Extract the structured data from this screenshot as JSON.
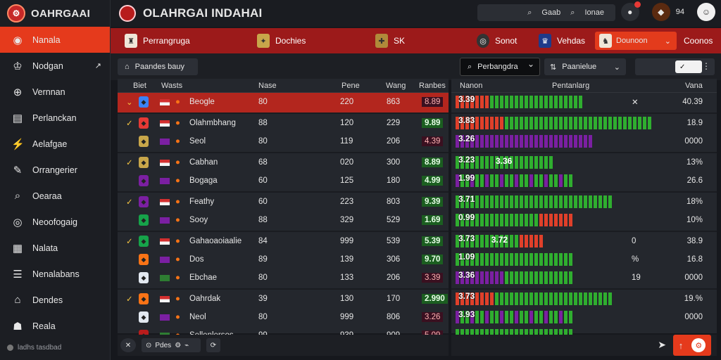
{
  "app": {
    "brand": "OAHRGAAI",
    "title": "OLAHRGAI INDAHAI"
  },
  "topbar": {
    "search_label": "Gaab",
    "search_btn": "Ionae",
    "icon_count": "94"
  },
  "sidebar": {
    "items": [
      {
        "label": "Nanala",
        "icon": "flame-icon",
        "active": true
      },
      {
        "label": "Nodgan",
        "icon": "trophy-icon",
        "arrow": "↗"
      },
      {
        "label": "Vernnan",
        "icon": "bracket-icon"
      },
      {
        "label": "Perlanckan",
        "icon": "chart-icon"
      },
      {
        "label": "Aelafgae",
        "icon": "lightning-icon"
      },
      {
        "label": "Orrangerier",
        "icon": "wrench-icon"
      },
      {
        "label": "Oearaa",
        "icon": "magnifier-icon"
      },
      {
        "label": "Neoofogaig",
        "icon": "globe-icon"
      },
      {
        "label": "Nalata",
        "icon": "grid-icon"
      },
      {
        "label": "Nenalabans",
        "icon": "list-icon"
      },
      {
        "label": "Dendes",
        "icon": "home-icon"
      },
      {
        "label": "Reala",
        "icon": "user-icon"
      }
    ],
    "status": "ladhs tasdbad"
  },
  "categories": [
    {
      "label": "Perrangruga"
    },
    {
      "label": "Dochies"
    },
    {
      "label": "SK"
    },
    {
      "label": "Sonot"
    },
    {
      "label": "Vehdas"
    },
    {
      "label": "Dounoon",
      "selected": true
    },
    {
      "label": "Coonos"
    }
  ],
  "toolbar": {
    "filter_label": "Paandes bauy",
    "search_value": "Perbangdra",
    "sort_label": "Paanielue",
    "toggle_label": "✓"
  },
  "table": {
    "headers": {
      "bet": "Biet",
      "match": "Wasts",
      "nase": "Nase",
      "pane": "Pene",
      "wang": "Wang",
      "results": "Ranbes"
    },
    "right_headers": {
      "nanon": "Nanon",
      "partang": "Pentanlarg",
      "vana": "Vana"
    },
    "games": [
      {
        "highlight": true,
        "rows": [
          {
            "team": "Beogle",
            "nase": "80",
            "pane": "220",
            "wang": "863",
            "odds": "8.89",
            "odds_type": "red",
            "bar_value": "3.39",
            "bar_pct": 0.57,
            "bar_color": "red-green",
            "mark": "✕",
            "vana": "40.39"
          }
        ]
      },
      {
        "rows": [
          {
            "team": "Olahmbhang",
            "nase": "88",
            "pane": "120",
            "wang": "229",
            "odds": "9.89",
            "odds_type": "green",
            "bar_value": "3.83",
            "bar_pct": 0.87,
            "bar_color": "red-green",
            "vana": "18.9"
          },
          {
            "team": "Seol",
            "nase": "80",
            "pane": "119",
            "wang": "206",
            "odds": "4.39",
            "odds_type": "red",
            "bar_value": "3.26",
            "bar_pct": 0.6,
            "bar_color": "purple",
            "vana": "0000"
          }
        ]
      },
      {
        "rows": [
          {
            "team": "Cabhan",
            "nase": "68",
            "pane": "020",
            "wang": "300",
            "odds": "8.89",
            "odds_type": "green",
            "bar_value": "3.23",
            "bar_pct": 0.43,
            "bar_color": "green",
            "mid_label": "3.36",
            "vana": "13%"
          },
          {
            "team": "Bogaga",
            "nase": "60",
            "pane": "125",
            "wang": "180",
            "odds": "4.99",
            "odds_type": "green",
            "bar_value": "1.99",
            "bar_pct": 0.52,
            "bar_color": "green-purple",
            "vana": "26.6"
          }
        ]
      },
      {
        "rows": [
          {
            "team": "Feathy",
            "nase": "60",
            "pane": "223",
            "wang": "803",
            "odds": "9.39",
            "odds_type": "green",
            "bar_value": "3.71",
            "bar_pct": 0.7,
            "bar_color": "green",
            "vana": "18%"
          },
          {
            "team": "Sooy",
            "nase": "88",
            "pane": "329",
            "wang": "529",
            "odds": "1.69",
            "odds_type": "green",
            "bar_value": "0.99",
            "bar_pct": 0.52,
            "bar_color": "green-red",
            "vana": "10%"
          }
        ]
      },
      {
        "rows": [
          {
            "team": "Gahaoaoiaalie",
            "nase": "84",
            "pane": "999",
            "wang": "539",
            "odds": "5.39",
            "odds_type": "green",
            "bar_value": "3.73",
            "bar_pct": 0.4,
            "bar_color": "green-red",
            "mid_label": "3.72",
            "mark": "0",
            "vana": "38.9"
          },
          {
            "team": "Dos",
            "nase": "89",
            "pane": "139",
            "wang": "306",
            "odds": "9.70",
            "odds_type": "green",
            "bar_value": "1.09",
            "bar_pct": 0.52,
            "bar_color": "green",
            "mark": "%",
            "vana": "16.8"
          },
          {
            "team": "Ebchae",
            "nase": "80",
            "pane": "133",
            "wang": "206",
            "odds": "3.39",
            "odds_type": "red",
            "bar_value": "3.36",
            "bar_pct": 0.52,
            "bar_color": "purple-green",
            "mark": "19",
            "vana": "0000"
          }
        ]
      },
      {
        "rows": [
          {
            "team": "Oahrdak",
            "nase": "39",
            "pane": "130",
            "wang": "170",
            "odds": "2.990",
            "odds_type": "green",
            "bar_value": "3.73",
            "bar_pct": 0.7,
            "bar_color": "red-green",
            "vana": "19.%"
          },
          {
            "team": "Neol",
            "nase": "80",
            "pane": "999",
            "wang": "806",
            "odds": "3.26",
            "odds_type": "red",
            "bar_value": "3.93",
            "bar_pct": 0.52,
            "bar_color": "green-purple",
            "vana": "0000"
          },
          {
            "team": "Sellenlersos",
            "nase": "99",
            "pane": "939",
            "wang": "909",
            "odds": "5.09",
            "odds_type": "red",
            "bar_value": "",
            "bar_pct": 0.52,
            "bar_color": "green",
            "vana": ""
          }
        ]
      }
    ]
  },
  "footer": {
    "tool_label": "Pdes",
    "fab_icon": "⇅"
  },
  "colors": {
    "accent": "#e53a1c",
    "catbar": "#9c1a1a",
    "green": "#2fae2f",
    "red": "#e0402a",
    "purple": "#7b1fa2"
  }
}
